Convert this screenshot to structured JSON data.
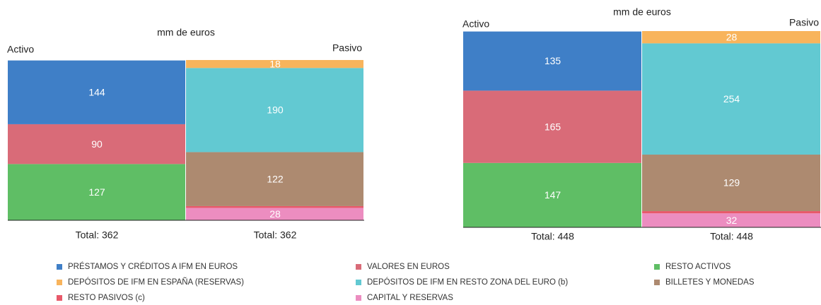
{
  "chart_data": [
    {
      "type": "stacked_bar",
      "title": "mm de euros",
      "side_labels": [
        "Activo",
        "Pasivo"
      ],
      "categories": [
        "Total: 362",
        "Total: 362"
      ],
      "ylim": [
        0,
        362
      ],
      "series": [
        {
          "name": "PRÉSTAMOS Y CRÉDITOS A IFM EN EUROS",
          "color": "#3f7fc7",
          "values": [
            144,
            null
          ]
        },
        {
          "name": "VALORES EN EUROS",
          "color": "#d96b78",
          "values": [
            90,
            null
          ]
        },
        {
          "name": "RESTO ACTIVOS",
          "color": "#5fbe65",
          "values": [
            127,
            null
          ]
        },
        {
          "name": "DEPÓSITOS DE IFM EN ESPAÑA (RESERVAS)",
          "color": "#f8b45c",
          "values": [
            null,
            18
          ]
        },
        {
          "name": "DEPÓSITOS DE IFM EN RESTO ZONA DEL EURO (b)",
          "color": "#62c9d2",
          "values": [
            null,
            190
          ]
        },
        {
          "name": "BILLETES Y MONEDAS",
          "color": "#ad8a70",
          "values": [
            null,
            122
          ]
        },
        {
          "name": "RESTO PASIVOS (c)",
          "color": "#e8596a",
          "values": [
            null,
            4
          ],
          "labels": false
        },
        {
          "name": "CAPITAL Y RESERVAS",
          "color": "#ec8dc0",
          "values": [
            null,
            28
          ]
        }
      ]
    },
    {
      "type": "stacked_bar",
      "title": "mm de euros",
      "side_labels": [
        "Activo",
        "Pasivo"
      ],
      "categories": [
        "Total: 448",
        "Total: 448"
      ],
      "ylim": [
        0,
        448
      ],
      "series": [
        {
          "name": "PRÉSTAMOS Y CRÉDITOS A IFM EN EUROS",
          "color": "#3f7fc7",
          "values": [
            135,
            null
          ]
        },
        {
          "name": "VALORES EN EUROS",
          "color": "#d96b78",
          "values": [
            165,
            null
          ]
        },
        {
          "name": "RESTO ACTIVOS",
          "color": "#5fbe65",
          "values": [
            147,
            null
          ]
        },
        {
          "name": "DEPÓSITOS DE IFM EN ESPAÑA (RESERVAS)",
          "color": "#f8b45c",
          "values": [
            null,
            28
          ]
        },
        {
          "name": "DEPÓSITOS DE IFM EN RESTO ZONA DEL EURO (b)",
          "color": "#62c9d2",
          "values": [
            null,
            254
          ]
        },
        {
          "name": "BILLETES Y MONEDAS",
          "color": "#ad8a70",
          "values": [
            null,
            129
          ]
        },
        {
          "name": "RESTO PASIVOS (c)",
          "color": "#e8596a",
          "values": [
            null,
            5
          ],
          "labels": false
        },
        {
          "name": "CAPITAL Y RESERVAS",
          "color": "#ec8dc0",
          "values": [
            null,
            32
          ]
        }
      ]
    }
  ]
}
